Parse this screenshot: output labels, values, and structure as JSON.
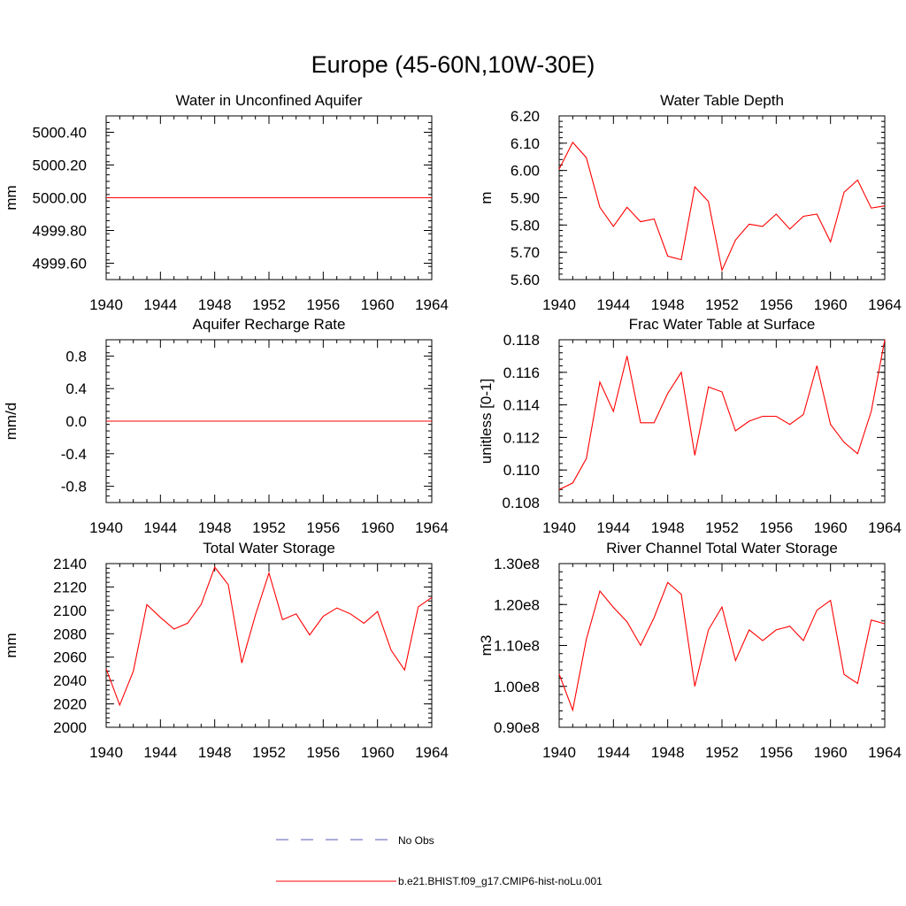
{
  "figure": {
    "title": "Europe (45-60N,10W-30E)"
  },
  "colors": {
    "model": "#ff0000",
    "obs": "#5a5ab4",
    "axis": "#000000"
  },
  "legend": {
    "obs_label": "No Obs",
    "model_label": "b.e21.BHIST.f09_g17.CMIP6-hist-noLu.001"
  },
  "chart_data": [
    {
      "type": "line",
      "title": "Water in Unconfined Aquifer",
      "xlabel": "",
      "ylabel": "mm",
      "xlim": [
        1940,
        1964
      ],
      "ylim": [
        4999.5,
        5000.5
      ],
      "xticks": [
        1940,
        1944,
        1948,
        1952,
        1956,
        1960,
        1964
      ],
      "xtick_labels": [
        "1940",
        "1944",
        "1948",
        "1952",
        "1956",
        "1960",
        "1964"
      ],
      "yticks": [
        4999.6,
        4999.8,
        5000.0,
        5000.2,
        5000.4
      ],
      "ytick_labels": [
        "4999.60",
        "4999.80",
        "5000.00",
        "5000.20",
        "5000.40"
      ],
      "grid": false,
      "x": [
        1940,
        1941,
        1942,
        1943,
        1944,
        1945,
        1946,
        1947,
        1948,
        1949,
        1950,
        1951,
        1952,
        1953,
        1954,
        1955,
        1956,
        1957,
        1958,
        1959,
        1960,
        1961,
        1962,
        1963,
        1964
      ],
      "series": [
        {
          "name": "b.e21.BHIST.f09_g17.CMIP6-hist-noLu.001",
          "values": [
            5000,
            5000,
            5000,
            5000,
            5000,
            5000,
            5000,
            5000,
            5000,
            5000,
            5000,
            5000,
            5000,
            5000,
            5000,
            5000,
            5000,
            5000,
            5000,
            5000,
            5000,
            5000,
            5000,
            5000,
            5000
          ]
        }
      ]
    },
    {
      "type": "line",
      "title": "Water Table Depth",
      "xlabel": "",
      "ylabel": "m",
      "xlim": [
        1940,
        1964
      ],
      "ylim": [
        5.6,
        6.2
      ],
      "xticks": [
        1940,
        1944,
        1948,
        1952,
        1956,
        1960,
        1964
      ],
      "xtick_labels": [
        "1940",
        "1944",
        "1948",
        "1952",
        "1956",
        "1960",
        "1964"
      ],
      "yticks": [
        5.6,
        5.7,
        5.8,
        5.9,
        6.0,
        6.1,
        6.2
      ],
      "ytick_labels": [
        "5.60",
        "5.70",
        "5.80",
        "5.90",
        "6.00",
        "6.10",
        "6.20"
      ],
      "grid": false,
      "x": [
        1940,
        1941,
        1942,
        1943,
        1944,
        1945,
        1946,
        1947,
        1948,
        1949,
        1950,
        1951,
        1952,
        1953,
        1954,
        1955,
        1956,
        1957,
        1958,
        1959,
        1960,
        1961,
        1962,
        1963,
        1964
      ],
      "series": [
        {
          "name": "b.e21.BHIST.f09_g17.CMIP6-hist-noLu.001",
          "values": [
            6.005,
            6.103,
            6.047,
            5.865,
            5.795,
            5.865,
            5.812,
            5.822,
            5.686,
            5.673,
            5.94,
            5.886,
            5.634,
            5.745,
            5.803,
            5.795,
            5.84,
            5.785,
            5.832,
            5.84,
            5.738,
            5.92,
            5.965,
            5.862,
            5.87
          ]
        }
      ]
    },
    {
      "type": "line",
      "title": "Aquifer Recharge Rate",
      "xlabel": "",
      "ylabel": "mm/d",
      "xlim": [
        1940,
        1964
      ],
      "ylim": [
        -1.0,
        1.0
      ],
      "xticks": [
        1940,
        1944,
        1948,
        1952,
        1956,
        1960,
        1964
      ],
      "xtick_labels": [
        "1940",
        "1944",
        "1948",
        "1952",
        "1956",
        "1960",
        "1964"
      ],
      "yticks": [
        -0.8,
        -0.4,
        0.0,
        0.4,
        0.8
      ],
      "ytick_labels": [
        "-0.8",
        "-0.4",
        "0.0",
        "0.4",
        "0.8"
      ],
      "grid": false,
      "x": [
        1940,
        1941,
        1942,
        1943,
        1944,
        1945,
        1946,
        1947,
        1948,
        1949,
        1950,
        1951,
        1952,
        1953,
        1954,
        1955,
        1956,
        1957,
        1958,
        1959,
        1960,
        1961,
        1962,
        1963,
        1964
      ],
      "series": [
        {
          "name": "b.e21.BHIST.f09_g17.CMIP6-hist-noLu.001",
          "values": [
            0,
            0,
            0,
            0,
            0,
            0,
            0,
            0,
            0,
            0,
            0,
            0,
            0,
            0,
            0,
            0,
            0,
            0,
            0,
            0,
            0,
            0,
            0,
            0,
            0
          ]
        }
      ]
    },
    {
      "type": "line",
      "title": "Frac Water Table at Surface",
      "xlabel": "",
      "ylabel": "unitless [0-1]",
      "xlim": [
        1940,
        1964
      ],
      "ylim": [
        0.108,
        0.118
      ],
      "xticks": [
        1940,
        1944,
        1948,
        1952,
        1956,
        1960,
        1964
      ],
      "xtick_labels": [
        "1940",
        "1944",
        "1948",
        "1952",
        "1956",
        "1960",
        "1964"
      ],
      "yticks": [
        0.108,
        0.11,
        0.112,
        0.114,
        0.116,
        0.118
      ],
      "ytick_labels": [
        "0.108",
        "0.110",
        "0.112",
        "0.114",
        "0.116",
        "0.118"
      ],
      "grid": false,
      "x": [
        1940,
        1941,
        1942,
        1943,
        1944,
        1945,
        1946,
        1947,
        1948,
        1949,
        1950,
        1951,
        1952,
        1953,
        1954,
        1955,
        1956,
        1957,
        1958,
        1959,
        1960,
        1961,
        1962,
        1963,
        1964
      ],
      "series": [
        {
          "name": "b.e21.BHIST.f09_g17.CMIP6-hist-noLu.001",
          "values": [
            0.1088,
            0.1092,
            0.1107,
            0.1154,
            0.1136,
            0.117,
            0.1129,
            0.1129,
            0.1147,
            0.116,
            0.1109,
            0.1151,
            0.1148,
            0.1124,
            0.113,
            0.1133,
            0.1133,
            0.1128,
            0.1134,
            0.1164,
            0.1128,
            0.1117,
            0.111,
            0.1136,
            0.118
          ]
        }
      ]
    },
    {
      "type": "line",
      "title": "Total Water Storage",
      "xlabel": "",
      "ylabel": "mm",
      "xlim": [
        1940,
        1964
      ],
      "ylim": [
        2000,
        2140
      ],
      "xticks": [
        1940,
        1944,
        1948,
        1952,
        1956,
        1960,
        1964
      ],
      "xtick_labels": [
        "1940",
        "1944",
        "1948",
        "1952",
        "1956",
        "1960",
        "1964"
      ],
      "yticks": [
        2000,
        2020,
        2040,
        2060,
        2080,
        2100,
        2120,
        2140
      ],
      "ytick_labels": [
        "2000",
        "2020",
        "2040",
        "2060",
        "2080",
        "2100",
        "2120",
        "2140"
      ],
      "grid": false,
      "x": [
        1940,
        1941,
        1942,
        1943,
        1944,
        1945,
        1946,
        1947,
        1948,
        1949,
        1950,
        1951,
        1952,
        1953,
        1954,
        1955,
        1956,
        1957,
        1958,
        1959,
        1960,
        1961,
        1962,
        1963,
        1964
      ],
      "series": [
        {
          "name": "b.e21.BHIST.f09_g17.CMIP6-hist-noLu.001",
          "values": [
            2050,
            2019,
            2048,
            2105,
            2094,
            2084,
            2089,
            2105,
            2137,
            2122,
            2055,
            2096,
            2132,
            2092,
            2097,
            2079,
            2095,
            2102,
            2097,
            2089,
            2099,
            2066,
            2049,
            2103,
            2111
          ]
        }
      ]
    },
    {
      "type": "line",
      "title": "River Channel Total Water Storage",
      "xlabel": "",
      "ylabel": "m3",
      "xlim": [
        1940,
        1964
      ],
      "ylim": [
        90000000.0,
        130000000.0
      ],
      "xticks": [
        1940,
        1944,
        1948,
        1952,
        1956,
        1960,
        1964
      ],
      "xtick_labels": [
        "1940",
        "1944",
        "1948",
        "1952",
        "1956",
        "1960",
        "1964"
      ],
      "yticks": [
        90000000.0,
        100000000.0,
        110000000.0,
        120000000.0,
        130000000.0
      ],
      "ytick_labels": [
        "0.90e8",
        "1.00e8",
        "1.10e8",
        "1.20e8",
        "1.30e8"
      ],
      "grid": false,
      "x": [
        1940,
        1941,
        1942,
        1943,
        1944,
        1945,
        1946,
        1947,
        1948,
        1949,
        1950,
        1951,
        1952,
        1953,
        1954,
        1955,
        1956,
        1957,
        1958,
        1959,
        1960,
        1961,
        1962,
        1963,
        1964
      ],
      "series": [
        {
          "name": "b.e21.BHIST.f09_g17.CMIP6-hist-noLu.001",
          "values": [
            103000000.0,
            94200000.0,
            111500000.0,
            123300000.0,
            119300000.0,
            115800000.0,
            110000000.0,
            116800000.0,
            125400000.0,
            122500000.0,
            100000000.0,
            113800000.0,
            119400000.0,
            106300000.0,
            113800000.0,
            111200000.0,
            113800000.0,
            114700000.0,
            111200000.0,
            118600000.0,
            121000000.0,
            102900000.0,
            100700000.0,
            116200000.0,
            115300000.0
          ]
        }
      ]
    }
  ]
}
